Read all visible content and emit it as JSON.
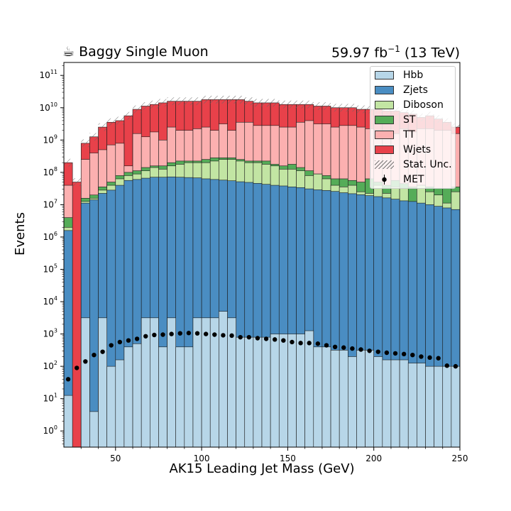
{
  "header": {
    "left_title": "Baggy Single Muon",
    "left_icon": "coffee-cup-icon",
    "lumi_value": "59.97 fb",
    "lumi_exp": "−1",
    "lumi_suffix": " (13 TeV)"
  },
  "chart_data": {
    "type": "bar",
    "subtype": "stacked-histogram",
    "xlabel": "AK15 Leading Jet Mass (GeV)",
    "ylabel": "Events",
    "xlim": [
      20,
      250
    ],
    "ylim_log10": [
      -0.5,
      11.4
    ],
    "y_scale": "log",
    "x_ticks": [
      50,
      100,
      150,
      200,
      250
    ],
    "y_tick_exponents": [
      0,
      1,
      2,
      3,
      4,
      5,
      6,
      7,
      8,
      9,
      10,
      11
    ],
    "y_tick_base": "10",
    "bin_width": 5,
    "bin_low_edges": [
      20,
      25,
      30,
      35,
      40,
      45,
      50,
      55,
      60,
      65,
      70,
      75,
      80,
      85,
      90,
      95,
      100,
      105,
      110,
      115,
      120,
      125,
      130,
      135,
      140,
      145,
      150,
      155,
      160,
      165,
      170,
      175,
      180,
      185,
      190,
      195,
      200,
      205,
      210,
      215,
      220,
      225,
      230,
      235,
      240,
      245
    ],
    "legend_position": "top-right",
    "series": [
      {
        "name": "Hbb",
        "color": "#b7d6e8",
        "log10_values": [
          1.1,
          -0.5,
          3.5,
          0.6,
          3.5,
          2.0,
          2.2,
          2.6,
          2.7,
          3.5,
          3.5,
          2.6,
          3.5,
          2.6,
          2.6,
          3.5,
          3.5,
          3.5,
          3.7,
          3.5,
          2.9,
          2.9,
          2.9,
          2.9,
          3.0,
          3.0,
          3.0,
          3.0,
          3.1,
          2.6,
          2.6,
          2.5,
          2.5,
          2.3,
          2.5,
          2.5,
          2.3,
          2.2,
          2.2,
          2.2,
          2.1,
          2.1,
          2.0,
          2.0,
          2.0,
          2.0
        ]
      },
      {
        "name": "Zjets",
        "color": "#4a8dc2",
        "log10_values": [
          6.2,
          -0.5,
          7.05,
          7.15,
          7.35,
          7.45,
          7.6,
          7.75,
          7.78,
          7.82,
          7.85,
          7.85,
          7.86,
          7.85,
          7.84,
          7.83,
          7.8,
          7.78,
          7.76,
          7.74,
          7.71,
          7.69,
          7.66,
          7.63,
          7.6,
          7.58,
          7.55,
          7.53,
          7.49,
          7.46,
          7.44,
          7.41,
          7.37,
          7.34,
          7.31,
          7.28,
          7.25,
          7.21,
          7.17,
          7.12,
          7.1,
          7.05,
          7.0,
          6.95,
          6.9,
          6.85
        ]
      },
      {
        "name": "Diboson",
        "color": "#c2e5a3",
        "log10_values": [
          6.3,
          -0.5,
          7.1,
          7.2,
          7.45,
          7.6,
          7.8,
          7.9,
          7.95,
          8.05,
          8.15,
          8.1,
          8.2,
          8.25,
          8.3,
          8.3,
          8.3,
          8.35,
          8.4,
          8.4,
          8.35,
          8.3,
          8.3,
          8.25,
          8.2,
          8.1,
          8.1,
          8.05,
          7.9,
          7.95,
          7.8,
          7.6,
          7.55,
          7.6,
          7.4,
          7.35,
          7.6,
          7.35,
          7.55,
          7.5,
          7.05,
          7.6,
          7.4,
          7.3,
          7.05,
          7.4
        ]
      },
      {
        "name": "ST",
        "color": "#55ac58",
        "log10_values": [
          6.6,
          -0.5,
          7.2,
          7.3,
          7.55,
          7.7,
          7.9,
          8.0,
          8.05,
          8.15,
          8.2,
          8.2,
          8.3,
          8.35,
          8.35,
          8.35,
          8.4,
          8.45,
          8.45,
          8.45,
          8.4,
          8.35,
          8.35,
          8.35,
          8.25,
          8.2,
          8.25,
          8.15,
          8.05,
          7.95,
          7.9,
          7.8,
          7.8,
          7.75,
          7.7,
          7.8,
          7.7,
          7.6,
          7.75,
          7.65,
          7.55,
          7.6,
          7.55,
          7.5,
          7.5,
          7.55
        ]
      },
      {
        "name": "TT",
        "color": "#fcb0b0",
        "log10_values": [
          7.6,
          -0.5,
          8.4,
          8.6,
          8.7,
          8.85,
          8.9,
          8.2,
          9.2,
          9.1,
          9.25,
          9.0,
          9.4,
          9.3,
          9.3,
          9.35,
          9.4,
          9.3,
          9.5,
          9.3,
          9.55,
          9.55,
          9.45,
          9.45,
          9.45,
          9.4,
          9.4,
          9.55,
          9.6,
          9.5,
          9.5,
          9.4,
          9.45,
          9.45,
          9.4,
          9.35,
          9.3,
          9.3,
          9.2,
          9.35,
          9.25,
          9.35,
          9.35,
          9.3,
          9.3,
          9.2
        ]
      },
      {
        "name": "Wjets",
        "color": "#e8414a",
        "log10_values": [
          8.3,
          7.7,
          8.9,
          9.1,
          9.4,
          9.55,
          9.6,
          9.75,
          9.95,
          10.05,
          10.1,
          10.15,
          10.2,
          10.2,
          10.2,
          10.2,
          10.25,
          10.25,
          10.25,
          10.25,
          10.25,
          10.2,
          10.15,
          10.15,
          10.15,
          10.1,
          10.1,
          10.1,
          10.1,
          10.05,
          10.05,
          10.0,
          10.0,
          10.0,
          9.95,
          9.95,
          9.95,
          9.9,
          9.9,
          9.85,
          9.8,
          9.7,
          9.75,
          9.65,
          9.55,
          9.4
        ]
      }
    ],
    "uncertainty": {
      "name": "Stat. Unc.",
      "style": "hatched",
      "color": "#777777"
    },
    "data_points": {
      "name": "MET",
      "color": "#000000",
      "log10_values": [
        1.6,
        1.95,
        2.15,
        2.35,
        2.45,
        2.65,
        2.75,
        2.8,
        2.85,
        2.93,
        2.97,
        2.98,
        3.0,
        3.02,
        3.03,
        3.02,
        3.0,
        2.98,
        2.96,
        2.95,
        2.9,
        2.9,
        2.87,
        2.85,
        2.83,
        2.8,
        2.75,
        2.72,
        2.72,
        2.7,
        2.65,
        2.6,
        2.58,
        2.55,
        2.52,
        2.48,
        2.45,
        2.42,
        2.4,
        2.38,
        2.35,
        2.3,
        2.27,
        2.25,
        2.02,
        2.0
      ]
    }
  }
}
